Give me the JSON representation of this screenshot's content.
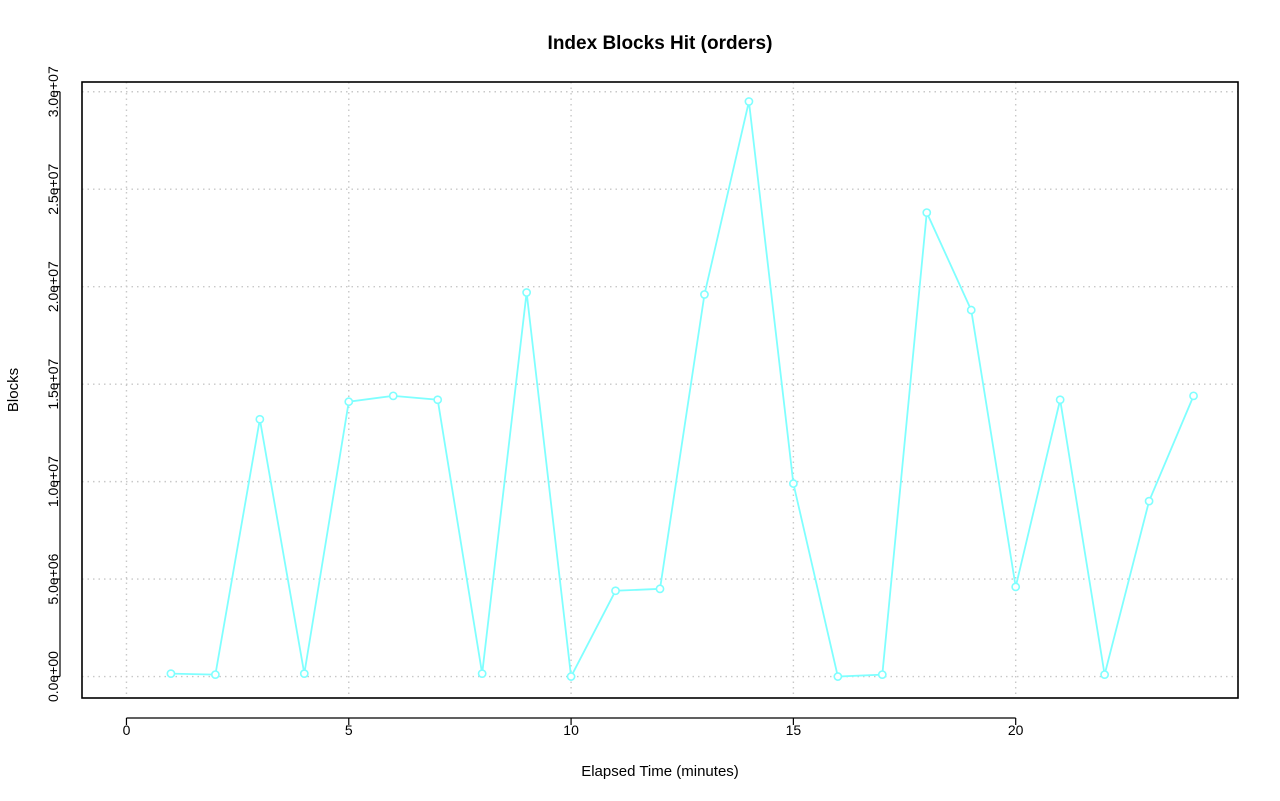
{
  "chart_data": {
    "type": "line",
    "title": "Index Blocks Hit (orders)",
    "xlabel": "Elapsed Time (minutes)",
    "ylabel": "Blocks",
    "xlim": [
      -1,
      25
    ],
    "ylim": [
      -1100000,
      30500000
    ],
    "xticks": [
      0,
      5,
      10,
      15,
      20
    ],
    "xtick_labels": [
      "0",
      "5",
      "10",
      "15",
      "20"
    ],
    "yticks": [
      0,
      5000000,
      10000000,
      15000000,
      20000000,
      25000000,
      30000000
    ],
    "ytick_labels": [
      "0.0e+00",
      "5.0e+06",
      "1.0e+07",
      "1.5e+07",
      "2.0e+07",
      "2.5e+07",
      "3.0e+07"
    ],
    "grid": true,
    "legend": "none",
    "series": [
      {
        "color": "#7fffff",
        "marker": "circle",
        "x": [
          1,
          2,
          3,
          4,
          5,
          6,
          7,
          8,
          9,
          10,
          11,
          12,
          13,
          14,
          15,
          16,
          17,
          18,
          19,
          20,
          21,
          22,
          23,
          24
        ],
        "y": [
          150000,
          100000,
          13200000,
          150000,
          14100000,
          14400000,
          14200000,
          150000,
          19700000,
          0,
          4400000,
          4500000,
          19600000,
          29500000,
          9900000,
          0,
          100000,
          23800000,
          18800000,
          4600000,
          14200000,
          100000,
          9000000,
          14400000
        ]
      }
    ]
  }
}
